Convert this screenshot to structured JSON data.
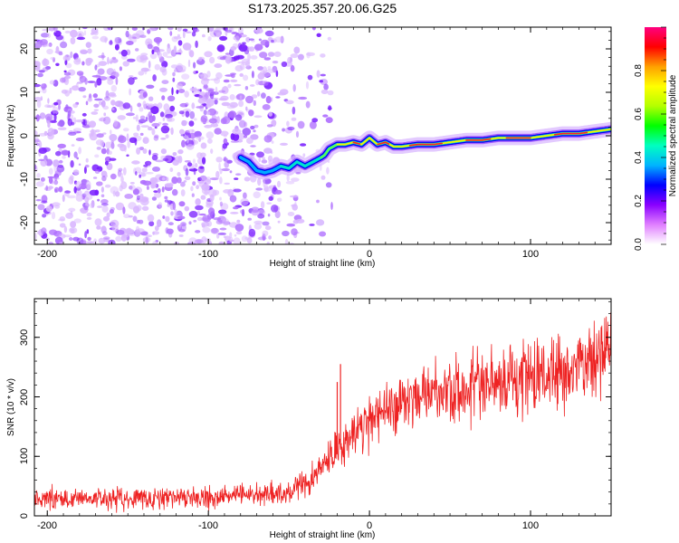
{
  "title": "S173.2025.357.20.06.G25",
  "chart_data": [
    {
      "type": "heatmap",
      "name": "spectrogram",
      "xlabel": "Height of straight line (km)",
      "ylabel": "Frequency (Hz)",
      "xlim": [
        -208,
        150
      ],
      "ylim": [
        -25,
        25
      ],
      "xticks": [
        -200,
        -100,
        0,
        100
      ],
      "yticks": [
        -20,
        -10,
        0,
        10,
        20
      ],
      "xtick_labels": [
        "-200",
        "-100",
        "0",
        "100"
      ],
      "ytick_labels": [
        "-20",
        "-10",
        "0",
        "10",
        "20"
      ],
      "ridge": {
        "x": [
          -80,
          -75,
          -70,
          -65,
          -60,
          -55,
          -50,
          -45,
          -40,
          -35,
          -30,
          -28,
          -25,
          -20,
          -15,
          -10,
          -5,
          0,
          5,
          10,
          15,
          20,
          30,
          40,
          50,
          60,
          70,
          80,
          90,
          100,
          110,
          120,
          130,
          140,
          150
        ],
        "y": [
          -5,
          -6,
          -8,
          -8.5,
          -8,
          -7,
          -7.5,
          -6,
          -7,
          -6,
          -5,
          -4.5,
          -3,
          -2,
          -2,
          -1.5,
          -2,
          -0.5,
          -2,
          -1.5,
          -2.5,
          -2.5,
          -2,
          -2,
          -1.5,
          -1,
          -1,
          -0.5,
          -0.5,
          -0.5,
          0,
          0.5,
          0.5,
          1,
          1.5
        ]
      },
      "colorbar": {
        "label": "Normalized spectral amplitude",
        "range": [
          0,
          1
        ],
        "ticks": [
          0.0,
          0.2,
          0.4,
          0.6,
          0.8
        ],
        "tick_labels": [
          "0.0",
          "0.2",
          "0.4",
          "0.6",
          "0.8"
        ],
        "colors": [
          "#ffffff",
          "#e07fff",
          "#8a00ff",
          "#0000ff",
          "#00b4ff",
          "#00ffc0",
          "#00ff00",
          "#b4ff00",
          "#ffff00",
          "#ffa000",
          "#ff0000",
          "#ff0080"
        ]
      },
      "noise_color": "#8a2be2"
    },
    {
      "type": "line",
      "name": "snr",
      "xlabel": "Height of straight line (km)",
      "ylabel": "SNR (10 * v/v)",
      "xlim": [
        -208,
        150
      ],
      "ylim": [
        0,
        365
      ],
      "xticks": [
        -200,
        -100,
        0,
        100
      ],
      "yticks": [
        0,
        100,
        200,
        300
      ],
      "xtick_labels": [
        "-200",
        "-100",
        "0",
        "100"
      ],
      "ytick_labels": [
        "0",
        "100",
        "200",
        "300"
      ],
      "color": "#ff0000",
      "trend": {
        "x": [
          -208,
          -150,
          -100,
          -70,
          -50,
          -35,
          -30,
          -25,
          -20,
          -15,
          -10,
          -5,
          0,
          10,
          20,
          30,
          50,
          70,
          100,
          130,
          150
        ],
        "y": [
          28,
          30,
          32,
          35,
          40,
          60,
          80,
          100,
          110,
          125,
          140,
          150,
          165,
          180,
          195,
          200,
          210,
          215,
          230,
          250,
          290
        ]
      },
      "spikes": [
        {
          "x": -18,
          "y": 255
        },
        {
          "x": -20,
          "y": 225
        }
      ]
    }
  ]
}
